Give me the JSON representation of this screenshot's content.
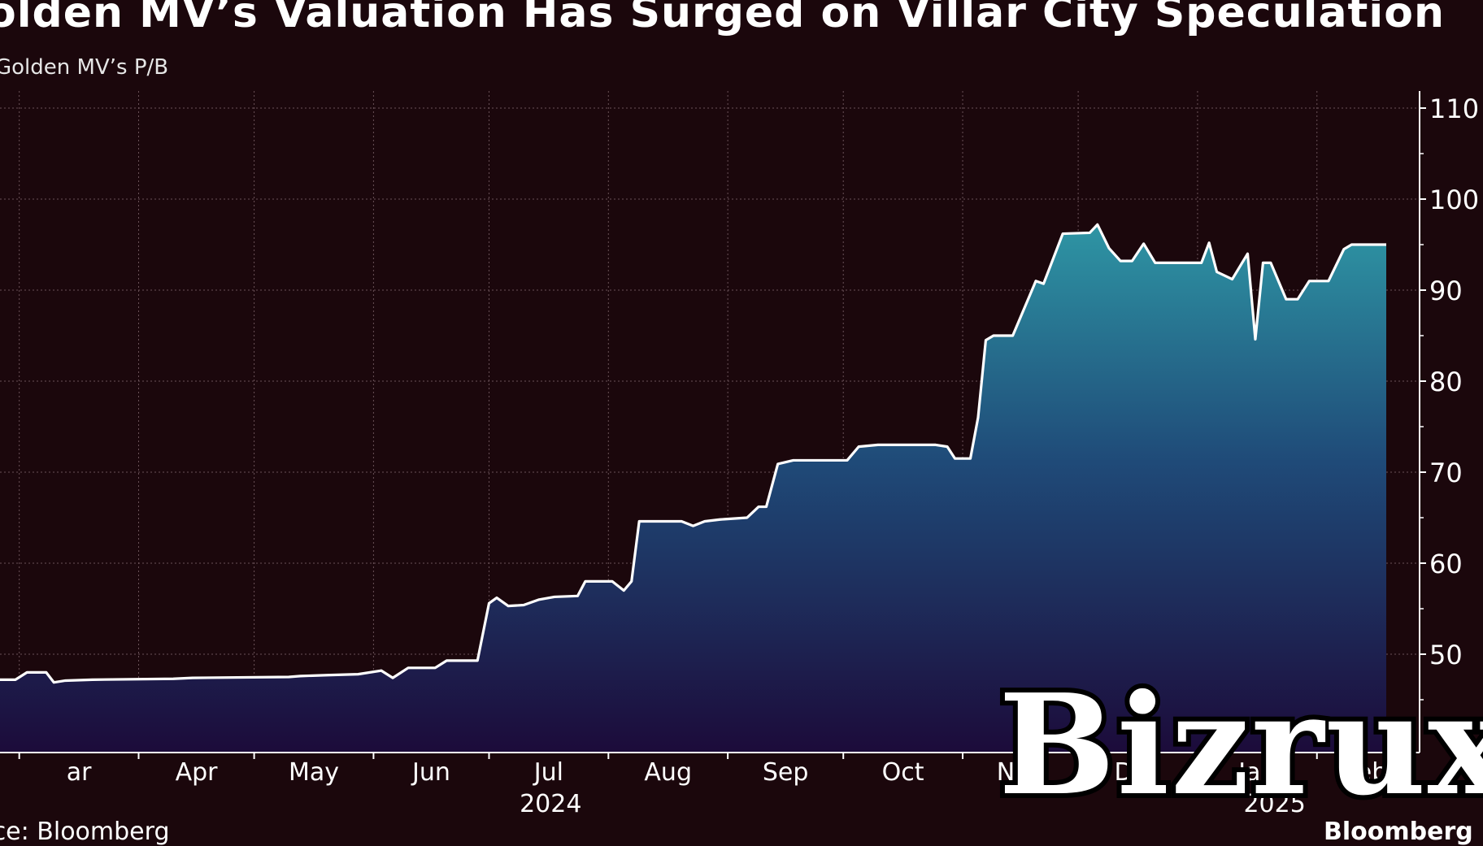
{
  "title": "olden MV’s Valuation Has Surged on Villar City Speculation",
  "subtitle": "Golden MV’s P/B",
  "footer": {
    "source": "urce: Bloomberg",
    "brand": "Bloomberg"
  },
  "watermark": "Bizrux",
  "colors": {
    "background": "#1b070c",
    "line": "#ffffff",
    "fill_top": "#2a8a9a",
    "fill_bottom": "#1a0a3a",
    "grid": "#5a4a50"
  },
  "chart_data": {
    "type": "area",
    "title": "olden MV’s Valuation Has Surged on Villar City Speculation",
    "subtitle": "Golden MV’s P/B",
    "y_axis_position": "right",
    "ylim": [
      42,
      112
    ],
    "yticks": [
      50,
      60,
      70,
      80,
      90,
      100,
      110
    ],
    "x_range": [
      "2024-02-25",
      "2025-02-19"
    ],
    "x_ticks": [
      {
        "label": "ar",
        "date": "2024-03-01"
      },
      {
        "label": "Apr",
        "date": "2024-04-01"
      },
      {
        "label": "May",
        "date": "2024-05-01"
      },
      {
        "label": "Jun",
        "date": "2024-06-01"
      },
      {
        "label": "Jul",
        "date": "2024-07-01"
      },
      {
        "label": "Aug",
        "date": "2024-08-01"
      },
      {
        "label": "Sep",
        "date": "2024-09-01"
      },
      {
        "label": "Oct",
        "date": "2024-10-01"
      },
      {
        "label": "Nov",
        "date": "2024-11-01"
      },
      {
        "label": "Dec",
        "date": "2024-12-01"
      },
      {
        "label": "Jan",
        "date": "2025-01-01"
      },
      {
        "label": "Feb",
        "date": "2025-02-01"
      }
    ],
    "year_labels": [
      {
        "label": "2024",
        "date": "2024-07-17"
      },
      {
        "label": "2025",
        "date": "2025-01-21"
      }
    ],
    "grid": true,
    "series": [
      {
        "points": [
          [
            "2024-02-25",
            47.2
          ],
          [
            "2024-02-29",
            47.2
          ],
          [
            "2024-03-03",
            48.0
          ],
          [
            "2024-03-08",
            48.0
          ],
          [
            "2024-03-10",
            46.9
          ],
          [
            "2024-03-13",
            47.1
          ],
          [
            "2024-03-20",
            47.2
          ],
          [
            "2024-04-10",
            47.3
          ],
          [
            "2024-04-15",
            47.4
          ],
          [
            "2024-05-10",
            47.5
          ],
          [
            "2024-05-13",
            47.6
          ],
          [
            "2024-05-20",
            47.7
          ],
          [
            "2024-05-28",
            47.8
          ],
          [
            "2024-06-03",
            48.2
          ],
          [
            "2024-06-06",
            47.4
          ],
          [
            "2024-06-10",
            48.5
          ],
          [
            "2024-06-17",
            48.5
          ],
          [
            "2024-06-20",
            49.3
          ],
          [
            "2024-06-28",
            49.3
          ],
          [
            "2024-07-01",
            55.6
          ],
          [
            "2024-07-03",
            56.2
          ],
          [
            "2024-07-06",
            55.3
          ],
          [
            "2024-07-10",
            55.4
          ],
          [
            "2024-07-14",
            56.0
          ],
          [
            "2024-07-18",
            56.3
          ],
          [
            "2024-07-24",
            56.4
          ],
          [
            "2024-07-26",
            58.0
          ],
          [
            "2024-08-02",
            58.0
          ],
          [
            "2024-08-05",
            57.0
          ],
          [
            "2024-08-07",
            58.0
          ],
          [
            "2024-08-09",
            64.6
          ],
          [
            "2024-08-20",
            64.6
          ],
          [
            "2024-08-23",
            64.1
          ],
          [
            "2024-08-26",
            64.6
          ],
          [
            "2024-08-30",
            64.8
          ],
          [
            "2024-09-06",
            65.0
          ],
          [
            "2024-09-09",
            66.2
          ],
          [
            "2024-09-11",
            66.2
          ],
          [
            "2024-09-14",
            70.9
          ],
          [
            "2024-09-18",
            71.3
          ],
          [
            "2024-09-28",
            71.3
          ],
          [
            "2024-10-02",
            71.3
          ],
          [
            "2024-10-05",
            72.8
          ],
          [
            "2024-10-10",
            73.0
          ],
          [
            "2024-10-25",
            73.0
          ],
          [
            "2024-10-28",
            72.8
          ],
          [
            "2024-10-30",
            71.5
          ],
          [
            "2024-11-03",
            71.5
          ],
          [
            "2024-11-05",
            76.0
          ],
          [
            "2024-11-07",
            84.5
          ],
          [
            "2024-11-09",
            85.0
          ],
          [
            "2024-11-14",
            85.0
          ],
          [
            "2024-11-20",
            91.0
          ],
          [
            "2024-11-22",
            90.7
          ],
          [
            "2024-11-27",
            96.2
          ],
          [
            "2024-12-04",
            96.3
          ],
          [
            "2024-12-06",
            97.2
          ],
          [
            "2024-12-09",
            94.6
          ],
          [
            "2024-12-12",
            93.2
          ],
          [
            "2024-12-15",
            93.2
          ],
          [
            "2024-12-18",
            95.1
          ],
          [
            "2024-12-21",
            93.0
          ],
          [
            "2024-12-29",
            93.0
          ],
          [
            "2025-01-02",
            93.0
          ],
          [
            "2025-01-04",
            95.2
          ],
          [
            "2025-01-06",
            92.0
          ],
          [
            "2025-01-08",
            91.6
          ],
          [
            "2025-01-10",
            91.2
          ],
          [
            "2025-01-14",
            94.0
          ],
          [
            "2025-01-16",
            84.6
          ],
          [
            "2025-01-18",
            93.0
          ],
          [
            "2025-01-20",
            93.0
          ],
          [
            "2025-01-24",
            89.0
          ],
          [
            "2025-01-27",
            89.0
          ],
          [
            "2025-01-30",
            91.0
          ],
          [
            "2025-02-04",
            91.0
          ],
          [
            "2025-02-08",
            94.5
          ],
          [
            "2025-02-10",
            95.0
          ],
          [
            "2025-02-12",
            95.0
          ],
          [
            "2025-02-15",
            95.0
          ],
          [
            "2025-02-19",
            95.0
          ]
        ]
      }
    ]
  }
}
